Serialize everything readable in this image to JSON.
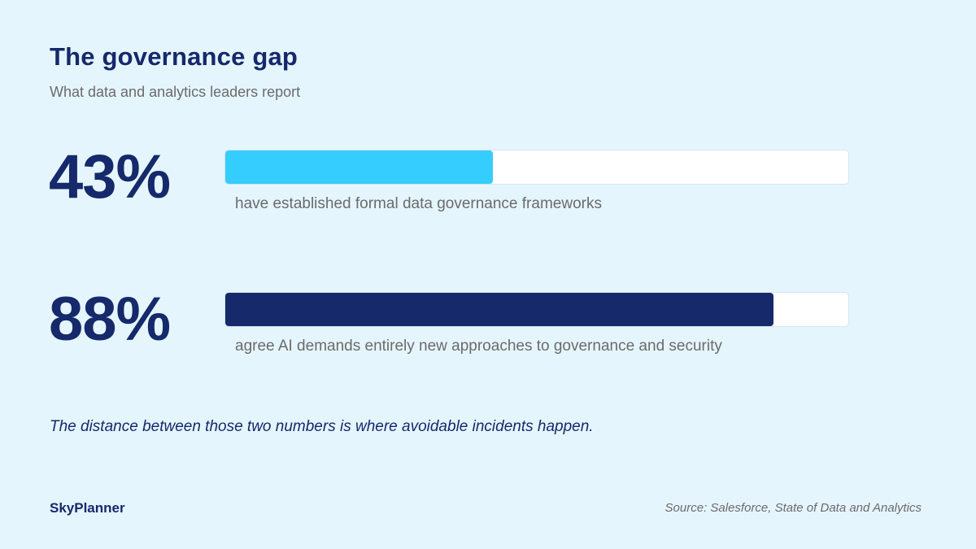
{
  "header": {
    "title": "The governance gap",
    "subtitle": "What data and analytics leaders report"
  },
  "chart_data": {
    "type": "bar",
    "orientation": "horizontal",
    "title": "The governance gap",
    "subtitle": "What data and analytics leaders report",
    "xlim": [
      0,
      100
    ],
    "grid": false,
    "legend": "none",
    "categories": [
      "have established formal data governance frameworks",
      "agree AI demands entirely new approaches to governance and security"
    ],
    "values": [
      43,
      88
    ],
    "value_labels": [
      "43%",
      "88%"
    ],
    "colors": [
      "#35cdfd",
      "#15296b"
    ],
    "track_color": "#ffffff"
  },
  "note": "The distance between those two numbers is where avoidable incidents happen.",
  "footer": {
    "brand": "SkyPlanner",
    "source": "Source: Salesforce, State of Data and Analytics"
  }
}
